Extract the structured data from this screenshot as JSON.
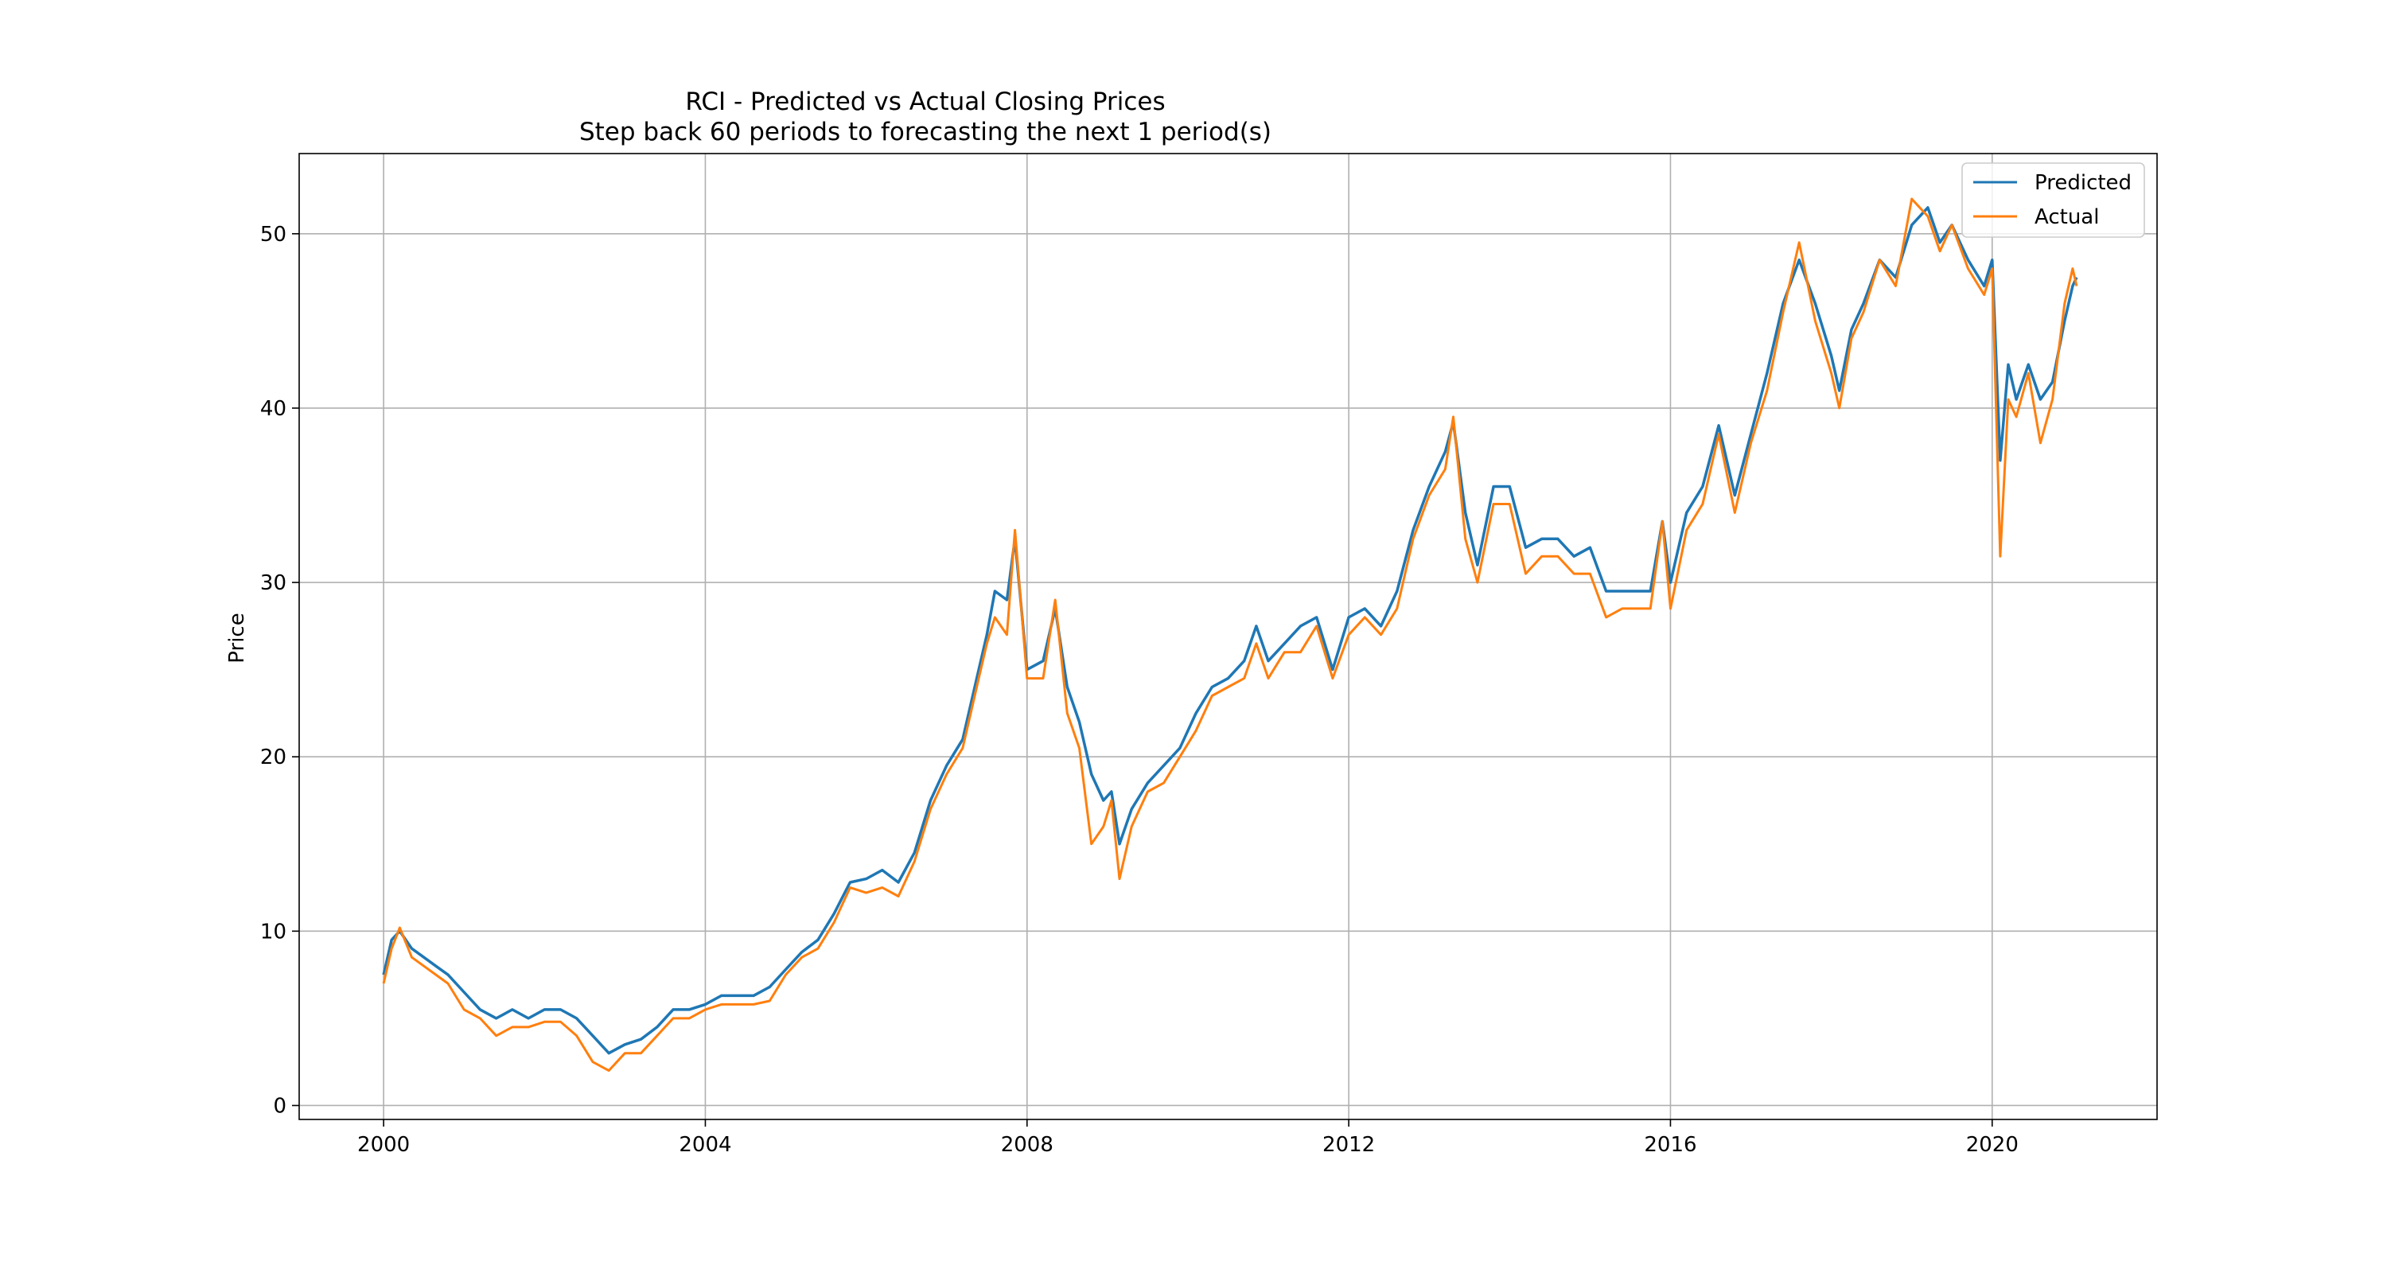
{
  "chart_data": {
    "type": "line",
    "title": "RCI - Predicted vs Actual Closing Prices",
    "subtitle": "Step back 60 periods to forecasting the next 1 period(s)",
    "xlabel": "",
    "ylabel": "Price",
    "x_tick_labels": [
      "2000",
      "2004",
      "2008",
      "2012",
      "2016",
      "2020"
    ],
    "x_tick_values": [
      2000,
      2004,
      2008,
      2012,
      2016,
      2020
    ],
    "y_tick_labels": [
      "0",
      "10",
      "20",
      "30",
      "40",
      "50"
    ],
    "y_tick_values": [
      0,
      10,
      20,
      30,
      40,
      50
    ],
    "xlim": [
      1998.95,
      2022.05
    ],
    "ylim": [
      -0.8,
      54.6
    ],
    "grid": true,
    "legend_position": "top-right",
    "x": [
      2000.0,
      2000.1,
      2000.2,
      2000.35,
      2000.5,
      2000.65,
      2000.8,
      2001.0,
      2001.2,
      2001.4,
      2001.6,
      2001.8,
      2002.0,
      2002.2,
      2002.4,
      2002.6,
      2002.8,
      2003.0,
      2003.2,
      2003.4,
      2003.6,
      2003.8,
      2004.0,
      2004.2,
      2004.4,
      2004.6,
      2004.8,
      2005.0,
      2005.2,
      2005.4,
      2005.6,
      2005.8,
      2006.0,
      2006.2,
      2006.4,
      2006.6,
      2006.8,
      2007.0,
      2007.2,
      2007.4,
      2007.5,
      2007.6,
      2007.75,
      2007.85,
      2008.0,
      2008.2,
      2008.35,
      2008.5,
      2008.65,
      2008.8,
      2008.95,
      2009.05,
      2009.15,
      2009.3,
      2009.5,
      2009.7,
      2009.9,
      2010.1,
      2010.3,
      2010.5,
      2010.7,
      2010.85,
      2011.0,
      2011.2,
      2011.4,
      2011.6,
      2011.8,
      2012.0,
      2012.2,
      2012.4,
      2012.6,
      2012.8,
      2013.0,
      2013.2,
      2013.3,
      2013.45,
      2013.6,
      2013.8,
      2014.0,
      2014.2,
      2014.4,
      2014.6,
      2014.8,
      2015.0,
      2015.2,
      2015.4,
      2015.6,
      2015.75,
      2015.9,
      2016.0,
      2016.2,
      2016.4,
      2016.6,
      2016.8,
      2017.0,
      2017.2,
      2017.4,
      2017.6,
      2017.8,
      2018.0,
      2018.1,
      2018.25,
      2018.4,
      2018.6,
      2018.8,
      2019.0,
      2019.2,
      2019.35,
      2019.5,
      2019.7,
      2019.9,
      2020.0,
      2020.1,
      2020.2,
      2020.3,
      2020.45,
      2020.6,
      2020.75,
      2020.9,
      2021.0,
      2021.05
    ],
    "series": [
      {
        "name": "Predicted",
        "color": "#1f77b4",
        "values": [
          7.5,
          9.5,
          10.0,
          9.0,
          8.5,
          8.0,
          7.5,
          6.5,
          5.5,
          5.0,
          5.5,
          5.0,
          5.5,
          5.5,
          5.0,
          4.0,
          3.0,
          3.5,
          3.8,
          4.5,
          5.5,
          5.5,
          5.8,
          6.3,
          6.3,
          6.3,
          6.8,
          7.8,
          8.8,
          9.5,
          11.0,
          12.8,
          13.0,
          13.5,
          12.8,
          14.5,
          17.5,
          19.5,
          21.0,
          25.0,
          27.0,
          29.5,
          29.0,
          32.5,
          25.0,
          25.5,
          28.5,
          24.0,
          22.0,
          19.0,
          17.5,
          18.0,
          15.0,
          17.0,
          18.5,
          19.5,
          20.5,
          22.5,
          24.0,
          24.5,
          25.5,
          27.5,
          25.5,
          26.5,
          27.5,
          28.0,
          25.0,
          28.0,
          28.5,
          27.5,
          29.5,
          33.0,
          35.5,
          37.5,
          39.2,
          34.0,
          31.0,
          35.5,
          35.5,
          32.0,
          32.5,
          32.5,
          31.5,
          32.0,
          29.5,
          29.5,
          29.5,
          29.5,
          33.5,
          30.0,
          34.0,
          35.5,
          39.0,
          35.0,
          38.5,
          42.0,
          46.0,
          48.5,
          46.0,
          43.0,
          41.0,
          44.5,
          46.0,
          48.5,
          47.5,
          50.5,
          51.5,
          49.5,
          50.5,
          48.5,
          47.0,
          48.5,
          37.0,
          42.5,
          40.5,
          42.5,
          40.5,
          41.5,
          45.0,
          47.0,
          47.5
        ]
      },
      {
        "name": "Actual",
        "color": "#ff7f0e",
        "values": [
          7.0,
          9.0,
          10.2,
          8.5,
          8.0,
          7.5,
          7.0,
          5.5,
          5.0,
          4.0,
          4.5,
          4.5,
          4.8,
          4.8,
          4.0,
          2.5,
          2.0,
          3.0,
          3.0,
          4.0,
          5.0,
          5.0,
          5.5,
          5.8,
          5.8,
          5.8,
          6.0,
          7.5,
          8.5,
          9.0,
          10.5,
          12.5,
          12.2,
          12.5,
          12.0,
          14.0,
          17.0,
          19.0,
          20.5,
          24.5,
          26.5,
          28.0,
          27.0,
          33.0,
          24.5,
          24.5,
          29.0,
          22.5,
          20.5,
          15.0,
          16.0,
          17.5,
          13.0,
          16.0,
          18.0,
          18.5,
          20.0,
          21.5,
          23.5,
          24.0,
          24.5,
          26.5,
          24.5,
          26.0,
          26.0,
          27.5,
          24.5,
          27.0,
          28.0,
          27.0,
          28.5,
          32.5,
          35.0,
          36.5,
          39.5,
          32.5,
          30.0,
          34.5,
          34.5,
          30.5,
          31.5,
          31.5,
          30.5,
          30.5,
          28.0,
          28.5,
          28.5,
          28.5,
          33.5,
          28.5,
          33.0,
          34.5,
          38.5,
          34.0,
          38.0,
          41.0,
          45.5,
          49.5,
          45.0,
          42.0,
          40.0,
          44.0,
          45.5,
          48.5,
          47.0,
          52.0,
          51.0,
          49.0,
          50.5,
          48.0,
          46.5,
          48.0,
          31.5,
          40.5,
          39.5,
          42.0,
          38.0,
          40.5,
          46.0,
          48.0,
          47.0
        ]
      }
    ]
  }
}
